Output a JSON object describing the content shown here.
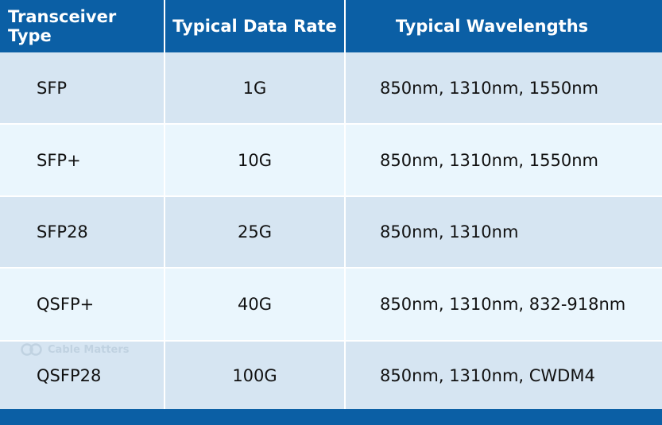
{
  "colors": {
    "header_bg": "#0b5fa5",
    "row_odd": "#d6e5f2",
    "row_even": "#eaf6fd",
    "text": "#111111",
    "header_text": "#ffffff"
  },
  "table": {
    "headers": [
      "Transceiver Type",
      "Typical Data Rate",
      "Typical Wavelengths"
    ],
    "rows": [
      [
        "SFP",
        "1G",
        "850nm, 1310nm, 1550nm"
      ],
      [
        "SFP+",
        "10G",
        "850nm, 1310nm, 1550nm"
      ],
      [
        "SFP28",
        "25G",
        "850nm, 1310nm"
      ],
      [
        "QSFP+",
        "40G",
        "850nm, 1310nm, 832-918nm"
      ],
      [
        "QSFP28",
        "100G",
        "850nm, 1310nm, CWDM4"
      ]
    ]
  },
  "watermark": {
    "text": "Cable Matters",
    "icon": "cable-matters-logo-icon"
  }
}
